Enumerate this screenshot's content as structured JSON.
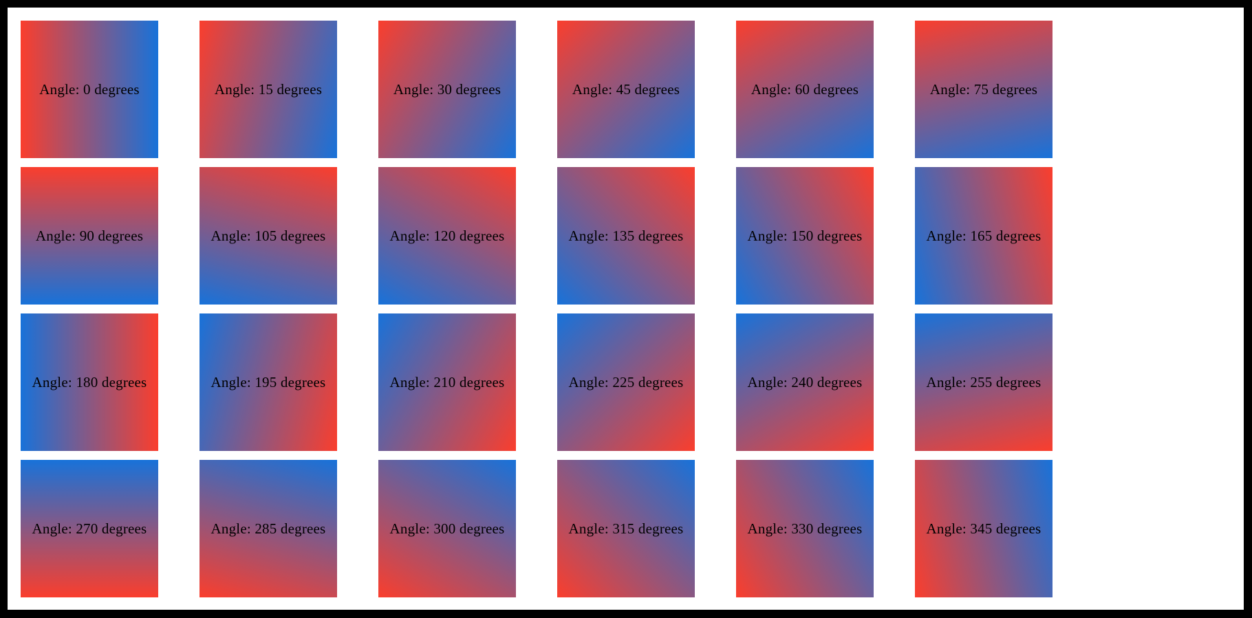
{
  "window": {
    "frame_color": "#000000",
    "page_color": "#ffffff"
  },
  "gradient": {
    "start_color_name": "red",
    "end_color_name": "blue",
    "start_color": "#fa3e2d",
    "end_color": "#1872d9"
  },
  "tiles": [
    {
      "angle_degrees": 0,
      "css_angle_deg": 90,
      "label": "Angle: 0 degrees"
    },
    {
      "angle_degrees": 15,
      "css_angle_deg": 105,
      "label": "Angle: 15 degrees"
    },
    {
      "angle_degrees": 30,
      "css_angle_deg": 120,
      "label": "Angle: 30 degrees"
    },
    {
      "angle_degrees": 45,
      "css_angle_deg": 135,
      "label": "Angle: 45 degrees"
    },
    {
      "angle_degrees": 60,
      "css_angle_deg": 150,
      "label": "Angle: 60 degrees"
    },
    {
      "angle_degrees": 75,
      "css_angle_deg": 165,
      "label": "Angle: 75 degrees"
    },
    {
      "angle_degrees": 90,
      "css_angle_deg": 180,
      "label": "Angle: 90 degrees"
    },
    {
      "angle_degrees": 105,
      "css_angle_deg": 195,
      "label": "Angle: 105 degrees"
    },
    {
      "angle_degrees": 120,
      "css_angle_deg": 210,
      "label": "Angle: 120 degrees"
    },
    {
      "angle_degrees": 135,
      "css_angle_deg": 225,
      "label": "Angle: 135 degrees"
    },
    {
      "angle_degrees": 150,
      "css_angle_deg": 240,
      "label": "Angle: 150 degrees"
    },
    {
      "angle_degrees": 165,
      "css_angle_deg": 255,
      "label": "Angle: 165 degrees"
    },
    {
      "angle_degrees": 180,
      "css_angle_deg": 270,
      "label": "Angle: 180 degrees"
    },
    {
      "angle_degrees": 195,
      "css_angle_deg": 285,
      "label": "Angle: 195 degrees"
    },
    {
      "angle_degrees": 210,
      "css_angle_deg": 300,
      "label": "Angle: 210 degrees"
    },
    {
      "angle_degrees": 225,
      "css_angle_deg": 315,
      "label": "Angle: 225 degrees"
    },
    {
      "angle_degrees": 240,
      "css_angle_deg": 330,
      "label": "Angle: 240 degrees"
    },
    {
      "angle_degrees": 255,
      "css_angle_deg": 345,
      "label": "Angle: 255 degrees"
    },
    {
      "angle_degrees": 270,
      "css_angle_deg": 0,
      "label": "Angle: 270 degrees"
    },
    {
      "angle_degrees": 285,
      "css_angle_deg": 15,
      "label": "Angle: 285 degrees"
    },
    {
      "angle_degrees": 300,
      "css_angle_deg": 30,
      "label": "Angle: 300 degrees"
    },
    {
      "angle_degrees": 315,
      "css_angle_deg": 45,
      "label": "Angle: 315 degrees"
    },
    {
      "angle_degrees": 330,
      "css_angle_deg": 60,
      "label": "Angle: 330 degrees"
    },
    {
      "angle_degrees": 345,
      "css_angle_deg": 75,
      "label": "Angle: 345 degrees"
    }
  ]
}
